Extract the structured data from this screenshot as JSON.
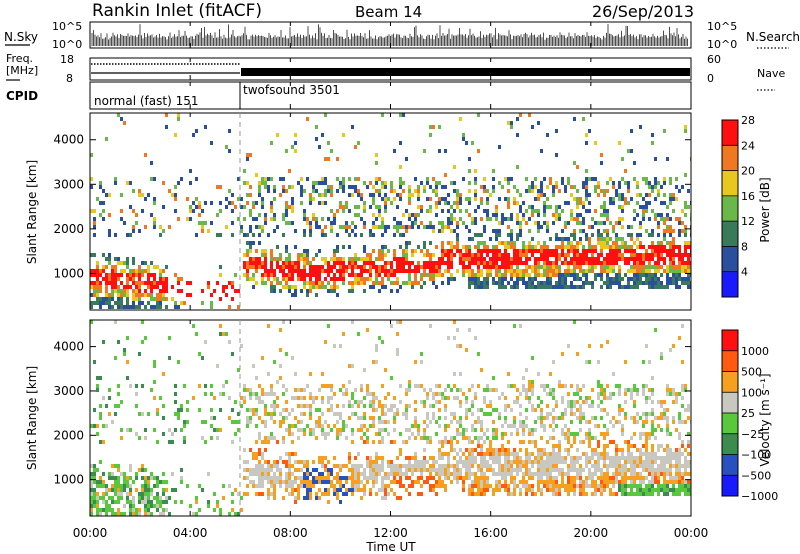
{
  "header": {
    "station": "Rankin Inlet (fitACF)",
    "beam": "Beam 14",
    "date": "26/Sep/2013"
  },
  "time_axis": {
    "label": "Time UT",
    "ticks": [
      "00:00",
      "04:00",
      "08:00",
      "12:00",
      "16:00",
      "20:00",
      "00:00"
    ],
    "range_hours": [
      0,
      24
    ]
  },
  "nsky": {
    "label": "N.Sky",
    "right_label": "N.Search",
    "ticks_left": [
      "10^5",
      "10^0"
    ],
    "ticks_right": [
      "10^5",
      "10^0"
    ]
  },
  "freq": {
    "label_line1": "Freq.",
    "label_line2": "[MHz]",
    "ticks_left": [
      "18",
      "8"
    ],
    "right_label": "Nave",
    "ticks_right": [
      "60",
      "0"
    ]
  },
  "cpid": {
    "label": "CPID",
    "segments": [
      {
        "name": "normal (fast) 151",
        "start_hour": 0,
        "end_hour": 6
      },
      {
        "name": "twofsound 3501",
        "start_hour": 6,
        "end_hour": 24
      }
    ]
  },
  "colors": {
    "power": [
      "#1a1aff",
      "#2a4f9c",
      "#3a7a5a",
      "#6ab84a",
      "#e6c820",
      "#f07820",
      "#ff1010"
    ],
    "velocity": [
      "#ff1010",
      "#ff5a10",
      "#f5a020",
      "#c8c8c0",
      "#5ac83c",
      "#3c8c50",
      "#2a4fbe",
      "#1a1aff"
    ]
  },
  "chart_data": [
    {
      "type": "heatmap",
      "title": "Power",
      "xlabel": "Time UT",
      "ylabel": "Slant Range [km]",
      "ylim": [
        180,
        4600
      ],
      "yticks": [
        1000,
        2000,
        3000,
        4000
      ],
      "colorbar": {
        "label": "Power [dB]",
        "ticks": [
          "4",
          "8",
          "12",
          "16",
          "20",
          "24",
          "28"
        ],
        "range": [
          0,
          30
        ]
      }
    },
    {
      "type": "heatmap",
      "title": "Velocity",
      "xlabel": "Time UT",
      "ylabel": "Slant Range [km]",
      "ylim": [
        180,
        4600
      ],
      "yticks": [
        1000,
        2000,
        3000,
        4000
      ],
      "colorbar": {
        "label": "Velocity [m s⁻¹]",
        "ticks": [
          "1000",
          "500",
          "100",
          "25",
          "−25",
          "−100",
          "−500",
          "−1000"
        ]
      }
    }
  ]
}
